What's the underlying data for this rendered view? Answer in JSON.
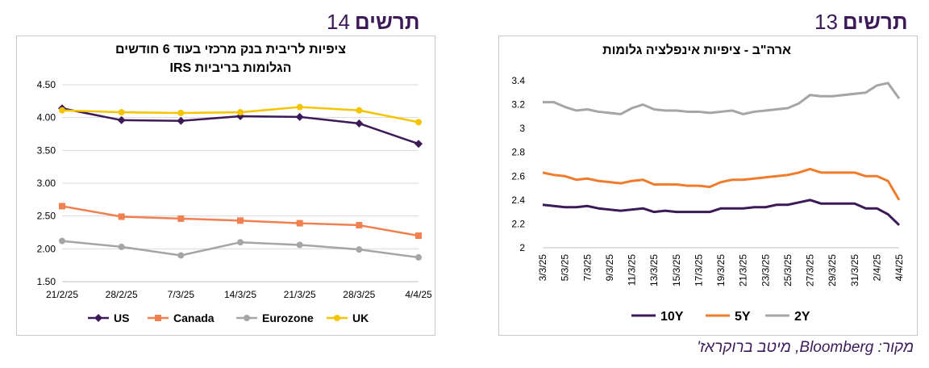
{
  "figures": [
    {
      "label": "תרשים",
      "number": "14",
      "chart_data": {
        "type": "line",
        "title_line1": "ציפיות לריבית בנק מרכזי בעוד 6 חודשים",
        "title_line2": "הגלומות בריביות IRS",
        "categories": [
          "21/2/25",
          "28/2/25",
          "7/3/25",
          "14/3/25",
          "21/3/25",
          "28/3/25",
          "4/4/25"
        ],
        "y_ticks": [
          "1.50",
          "2.00",
          "2.50",
          "3.00",
          "3.50",
          "4.00",
          "4.50"
        ],
        "ylim": [
          1.5,
          4.5
        ],
        "grid": true,
        "legend_position": "bottom",
        "series": [
          {
            "name": "US",
            "color": "#3b1a57",
            "marker": "diamond",
            "values": [
              4.14,
              3.96,
              3.95,
              4.02,
              4.01,
              3.91,
              3.6
            ]
          },
          {
            "name": "Canada",
            "color": "#f08050",
            "marker": "square",
            "values": [
              2.65,
              2.49,
              2.46,
              2.43,
              2.39,
              2.36,
              2.2
            ]
          },
          {
            "name": "Eurozone",
            "color": "#a5a5a5",
            "marker": "circle",
            "values": [
              2.12,
              2.03,
              1.9,
              2.1,
              2.06,
              1.99,
              1.87
            ]
          },
          {
            "name": "UK",
            "color": "#f5c400",
            "marker": "circle",
            "values": [
              4.11,
              4.08,
              4.07,
              4.08,
              4.16,
              4.11,
              3.93
            ]
          }
        ]
      }
    },
    {
      "label": "תרשים",
      "number": "13",
      "chart_data": {
        "type": "line",
        "title": "ארה\"ב - ציפיות אינפלציה גלומות",
        "categories": [
          "3/3/25",
          "4/3/25",
          "5/3/25",
          "6/3/25",
          "7/3/25",
          "8/3/25",
          "9/3/25",
          "10/3/25",
          "11/3/25",
          "12/3/25",
          "13/3/25",
          "14/3/25",
          "15/3/25",
          "16/3/25",
          "17/3/25",
          "18/3/25",
          "19/3/25",
          "20/3/25",
          "21/3/25",
          "22/3/25",
          "23/3/25",
          "24/3/25",
          "25/3/25",
          "26/3/25",
          "27/3/25",
          "28/3/25",
          "29/3/25",
          "30/3/25",
          "31/3/25",
          "1/4/25",
          "2/4/25",
          "3/4/25",
          "4/4/25"
        ],
        "visible_tick_labels": [
          "3/3/25",
          "5/3/25",
          "7/3/25",
          "9/3/25",
          "11/3/25",
          "13/3/25",
          "15/3/25",
          "17/3/25",
          "19/3/25",
          "21/3/25",
          "23/3/25",
          "25/3/25",
          "27/3/25",
          "29/3/25",
          "31/3/25",
          "2/4/25",
          "4/4/25"
        ],
        "y_ticks": [
          "2",
          "2.2",
          "2.4",
          "2.6",
          "2.8",
          "3",
          "3.2",
          "3.4"
        ],
        "ylim": [
          2.0,
          3.4
        ],
        "grid": false,
        "legend_position": "bottom",
        "series": [
          {
            "name": "10Y",
            "color": "#3b1a57",
            "values": [
              2.36,
              2.35,
              2.34,
              2.34,
              2.35,
              2.33,
              2.32,
              2.31,
              2.32,
              2.33,
              2.3,
              2.31,
              2.3,
              2.3,
              2.3,
              2.3,
              2.33,
              2.33,
              2.33,
              2.34,
              2.34,
              2.36,
              2.36,
              2.38,
              2.4,
              2.37,
              2.37,
              2.37,
              2.37,
              2.33,
              2.33,
              2.28,
              2.19
            ]
          },
          {
            "name": "5Y",
            "color": "#f07b2a",
            "values": [
              2.63,
              2.61,
              2.6,
              2.57,
              2.58,
              2.56,
              2.55,
              2.54,
              2.56,
              2.57,
              2.53,
              2.53,
              2.53,
              2.52,
              2.52,
              2.51,
              2.55,
              2.57,
              2.57,
              2.58,
              2.59,
              2.6,
              2.61,
              2.63,
              2.66,
              2.63,
              2.63,
              2.63,
              2.63,
              2.6,
              2.6,
              2.56,
              2.4
            ]
          },
          {
            "name": "2Y",
            "color": "#a5a5a5",
            "values": [
              3.22,
              3.22,
              3.18,
              3.15,
              3.16,
              3.14,
              3.13,
              3.12,
              3.17,
              3.2,
              3.16,
              3.15,
              3.15,
              3.14,
              3.14,
              3.13,
              3.14,
              3.15,
              3.12,
              3.14,
              3.15,
              3.16,
              3.17,
              3.21,
              3.28,
              3.27,
              3.27,
              3.28,
              3.29,
              3.3,
              3.36,
              3.38,
              3.25
            ]
          }
        ]
      }
    }
  ],
  "source": "מקור: Bloomberg, מיטב ברוקראז'"
}
